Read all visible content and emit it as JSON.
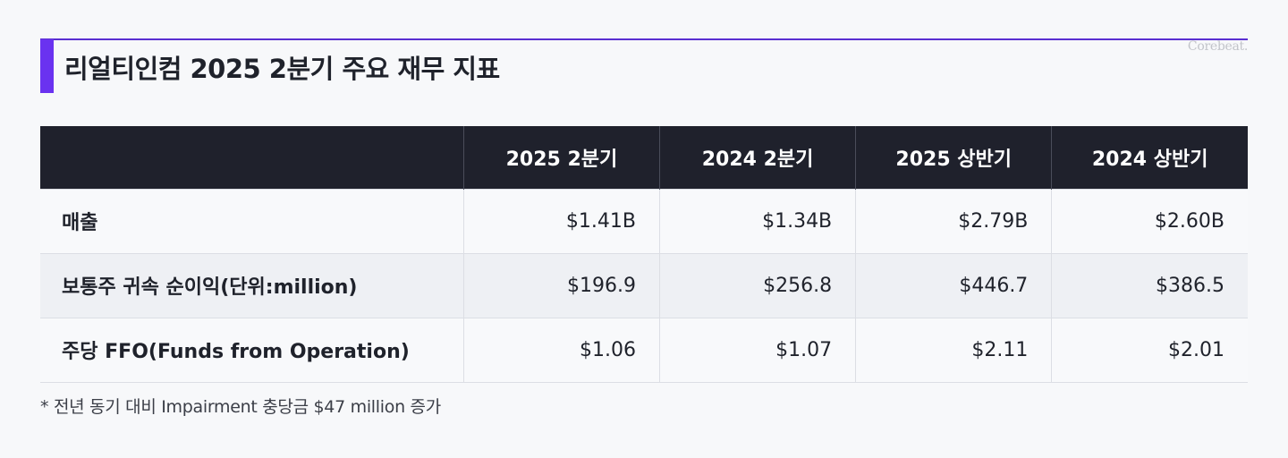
{
  "header": {
    "title": "리얼티인컴 2025 2분기 주요 재무 지표",
    "brand": "Corebeat."
  },
  "table": {
    "columns": [
      "2025 2분기",
      "2024 2분기",
      "2025 상반기",
      "2024 상반기"
    ],
    "rows": [
      {
        "label": "매출",
        "values": [
          "$1.41B",
          "$1.34B",
          "$2.79B",
          "$2.60B"
        ]
      },
      {
        "label": "보통주 귀속 순이익(단위:million)",
        "values": [
          "$196.9",
          "$256.8",
          "$446.7",
          "$386.5"
        ]
      },
      {
        "label": "주당 FFO(Funds from Operation)",
        "values": [
          "$1.06",
          "$1.07",
          "$2.11",
          "$2.01"
        ]
      }
    ]
  },
  "footnote": "* 전년 동기 대비 Impairment 충당금 $47 million 증가",
  "colors": {
    "accent": "#6a32f0",
    "header_bg": "#1f212c",
    "page_bg": "#f7f8fa"
  }
}
